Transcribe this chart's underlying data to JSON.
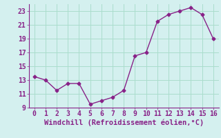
{
  "x": [
    0,
    1,
    2,
    3,
    4,
    5,
    6,
    7,
    8,
    9,
    10,
    11,
    12,
    13,
    14,
    15,
    16
  ],
  "y": [
    13.5,
    13.0,
    11.5,
    12.5,
    12.5,
    9.5,
    10.0,
    10.5,
    11.5,
    16.5,
    17.0,
    21.5,
    22.5,
    23.0,
    23.5,
    22.5,
    19.0
  ],
  "line_color": "#882288",
  "marker": "D",
  "marker_size": 2.5,
  "bg_color": "#d4f0ef",
  "grid_color": "#aaddcc",
  "xlabel": "Windchill (Refroidissement éolien,°C)",
  "xlabel_color": "#882288",
  "tick_color": "#882288",
  "xlim": [
    -0.5,
    16.5
  ],
  "ylim": [
    9,
    24
  ],
  "yticks": [
    9,
    11,
    13,
    15,
    17,
    19,
    21,
    23
  ],
  "xticks": [
    0,
    1,
    2,
    3,
    4,
    5,
    6,
    7,
    8,
    9,
    10,
    11,
    12,
    13,
    14,
    15,
    16
  ],
  "font_size": 7,
  "xlabel_fontsize": 7.5,
  "line_width": 1.0
}
